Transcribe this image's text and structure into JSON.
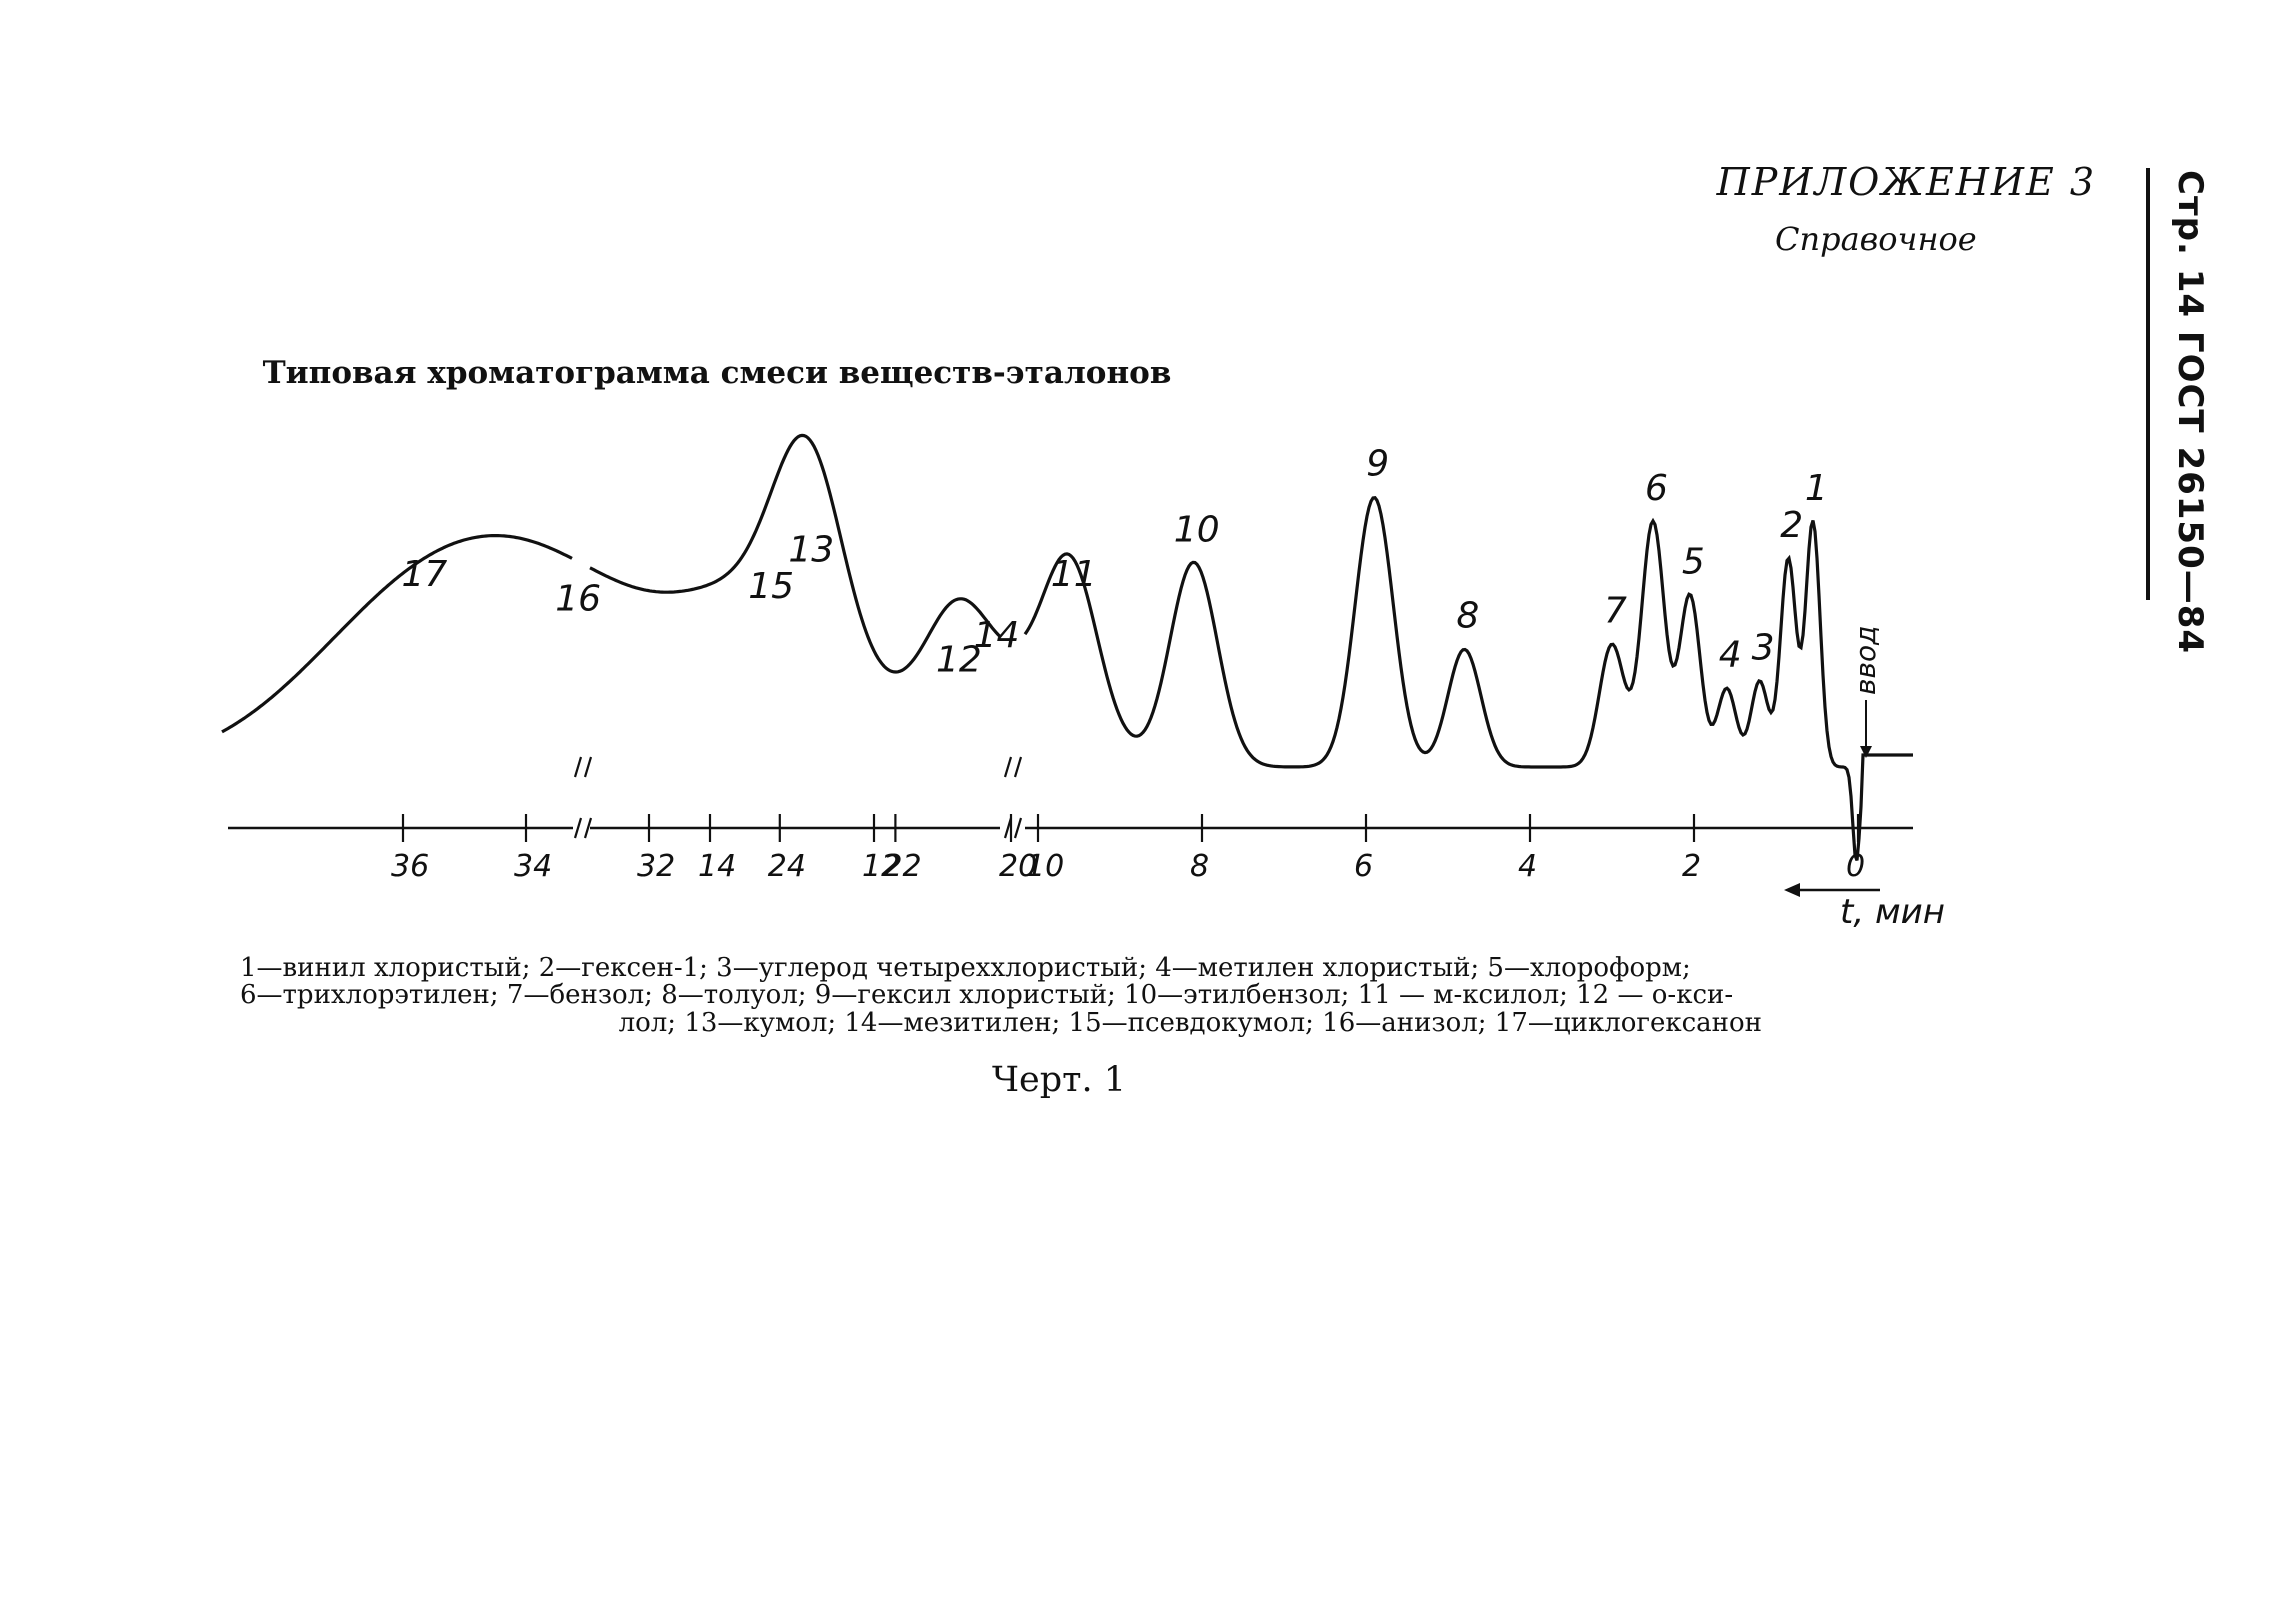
{
  "page": {
    "appendix_title": "ПРИЛОЖЕНИЕ 3",
    "appendix_subtitle": "Справочное",
    "side_header": "Стр. 14 ГОСТ 26150—84",
    "figure_caption": "Черт. 1"
  },
  "chart_data": {
    "type": "line",
    "title": "Типовая хроматограмма смеси веществ-эталонов",
    "xlabel": "t, мин",
    "ylabel": "",
    "x_direction": "decreasing-left-to-right",
    "x_axis_breaks": [
      [
        14.5,
        19.5
      ],
      [
        25,
        31.5
      ]
    ],
    "x_tick_labels": [
      "36",
      "34",
      "32",
      "24",
      "22",
      "20",
      "14",
      "12",
      "10",
      "8",
      "6",
      "4",
      "2",
      "0"
    ],
    "injection_label": "ввод",
    "peaks": [
      {
        "label": "1",
        "retention_min": 0.55,
        "height": 1.0
      },
      {
        "label": "2",
        "retention_min": 0.85,
        "height": 0.85
      },
      {
        "label": "3",
        "retention_min": 1.2,
        "height": 0.35
      },
      {
        "label": "4",
        "retention_min": 1.6,
        "height": 0.32
      },
      {
        "label": "5",
        "retention_min": 2.05,
        "height": 0.7
      },
      {
        "label": "6",
        "retention_min": 2.5,
        "height": 1.0
      },
      {
        "label": "7",
        "retention_min": 3.0,
        "height": 0.5
      },
      {
        "label": "8",
        "retention_min": 4.8,
        "height": 0.48
      },
      {
        "label": "9",
        "retention_min": 5.9,
        "height": 1.1
      },
      {
        "label": "10",
        "retention_min": 8.1,
        "height": 0.83
      },
      {
        "label": "11",
        "retention_min": 9.6,
        "height": 0.65
      },
      {
        "label": "12",
        "retention_min": 11.0,
        "height": 0.3
      },
      {
        "label": "13",
        "retention_min": 12.8,
        "height": 0.75
      },
      {
        "label": "14",
        "retention_min": 20.3,
        "height": 0.4
      },
      {
        "label": "15",
        "retention_min": 24.2,
        "height": 0.6
      },
      {
        "label": "16",
        "retention_min": 33.2,
        "height": 0.55
      },
      {
        "label": "17",
        "retention_min": 35.7,
        "height": 0.65
      }
    ]
  },
  "legend": {
    "line1": "1—винил хлористый; 2—гексен-1; 3—углерод четыреххлористый; 4—метилен хлористый; 5—хлороформ;",
    "line2": "6—трихлорэтилен; 7—бензол; 8—толуол; 9—гексил хлористый; 10—этилбензол; 11 — м-ксилол; 12 — о-кси-",
    "line3": "лол; 13—кумол; 14—мезитилен; 15—псевдокумол; 16—анизол; 17—циклогексанон"
  }
}
